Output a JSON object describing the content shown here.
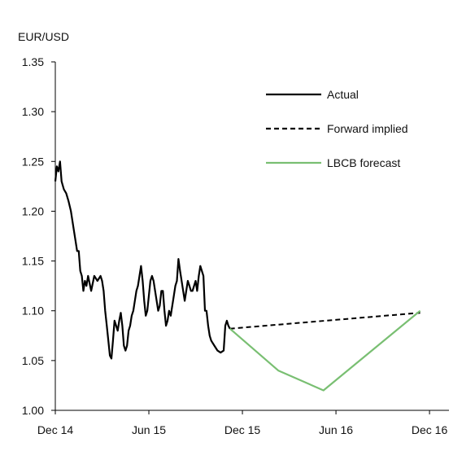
{
  "chart_data": {
    "type": "line",
    "title": "",
    "ylabel": "EUR/USD",
    "xlabel": "",
    "ylim": [
      1.0,
      1.35
    ],
    "yticks": [
      "1.00",
      "1.05",
      "1.10",
      "1.15",
      "1.20",
      "1.25",
      "1.30",
      "1.35"
    ],
    "xticks": [
      "Dec 14",
      "Jun 15",
      "Dec 15",
      "Jun 16",
      "Dec 16"
    ],
    "x_unit": "months from Dec 14",
    "legend_position": "top-right",
    "grid": false,
    "series": [
      {
        "name": "Actual",
        "style": "solid",
        "color": "#000000",
        "points": [
          [
            0.0,
            1.23
          ],
          [
            0.1,
            1.245
          ],
          [
            0.2,
            1.24
          ],
          [
            0.3,
            1.25
          ],
          [
            0.4,
            1.23
          ],
          [
            0.55,
            1.222
          ],
          [
            0.7,
            1.218
          ],
          [
            0.85,
            1.21
          ],
          [
            1.0,
            1.2
          ],
          [
            1.1,
            1.19
          ],
          [
            1.2,
            1.18
          ],
          [
            1.3,
            1.17
          ],
          [
            1.4,
            1.16
          ],
          [
            1.5,
            1.16
          ],
          [
            1.6,
            1.14
          ],
          [
            1.7,
            1.135
          ],
          [
            1.8,
            1.12
          ],
          [
            1.9,
            1.13
          ],
          [
            2.0,
            1.125
          ],
          [
            2.1,
            1.135
          ],
          [
            2.3,
            1.12
          ],
          [
            2.5,
            1.135
          ],
          [
            2.7,
            1.13
          ],
          [
            2.9,
            1.135
          ],
          [
            3.0,
            1.13
          ],
          [
            3.1,
            1.12
          ],
          [
            3.2,
            1.1
          ],
          [
            3.3,
            1.085
          ],
          [
            3.4,
            1.07
          ],
          [
            3.5,
            1.055
          ],
          [
            3.6,
            1.052
          ],
          [
            3.7,
            1.07
          ],
          [
            3.8,
            1.09
          ],
          [
            3.9,
            1.085
          ],
          [
            4.0,
            1.08
          ],
          [
            4.1,
            1.09
          ],
          [
            4.2,
            1.098
          ],
          [
            4.3,
            1.085
          ],
          [
            4.4,
            1.065
          ],
          [
            4.5,
            1.06
          ],
          [
            4.6,
            1.065
          ],
          [
            4.7,
            1.08
          ],
          [
            4.8,
            1.085
          ],
          [
            4.9,
            1.095
          ],
          [
            5.0,
            1.1
          ],
          [
            5.1,
            1.11
          ],
          [
            5.2,
            1.12
          ],
          [
            5.3,
            1.125
          ],
          [
            5.4,
            1.135
          ],
          [
            5.5,
            1.145
          ],
          [
            5.6,
            1.13
          ],
          [
            5.7,
            1.11
          ],
          [
            5.8,
            1.095
          ],
          [
            5.9,
            1.1
          ],
          [
            6.0,
            1.115
          ],
          [
            6.1,
            1.13
          ],
          [
            6.2,
            1.135
          ],
          [
            6.3,
            1.13
          ],
          [
            6.4,
            1.12
          ],
          [
            6.5,
            1.11
          ],
          [
            6.6,
            1.1
          ],
          [
            6.7,
            1.105
          ],
          [
            6.8,
            1.12
          ],
          [
            6.9,
            1.12
          ],
          [
            7.0,
            1.1
          ],
          [
            7.1,
            1.085
          ],
          [
            7.2,
            1.09
          ],
          [
            7.3,
            1.1
          ],
          [
            7.4,
            1.095
          ],
          [
            7.5,
            1.105
          ],
          [
            7.6,
            1.115
          ],
          [
            7.7,
            1.125
          ],
          [
            7.8,
            1.13
          ],
          [
            7.9,
            1.152
          ],
          [
            8.0,
            1.14
          ],
          [
            8.1,
            1.13
          ],
          [
            8.2,
            1.12
          ],
          [
            8.3,
            1.11
          ],
          [
            8.4,
            1.12
          ],
          [
            8.5,
            1.13
          ],
          [
            8.6,
            1.125
          ],
          [
            8.7,
            1.12
          ],
          [
            8.8,
            1.12
          ],
          [
            8.9,
            1.125
          ],
          [
            9.0,
            1.13
          ],
          [
            9.1,
            1.12
          ],
          [
            9.2,
            1.135
          ],
          [
            9.3,
            1.145
          ],
          [
            9.4,
            1.14
          ],
          [
            9.5,
            1.135
          ],
          [
            9.6,
            1.1
          ],
          [
            9.7,
            1.1
          ],
          [
            9.8,
            1.085
          ],
          [
            9.9,
            1.075
          ],
          [
            10.0,
            1.07
          ],
          [
            10.2,
            1.065
          ],
          [
            10.4,
            1.06
          ],
          [
            10.6,
            1.058
          ],
          [
            10.8,
            1.06
          ],
          [
            10.9,
            1.085
          ],
          [
            11.0,
            1.09
          ],
          [
            11.1,
            1.085
          ],
          [
            11.2,
            1.082
          ]
        ]
      },
      {
        "name": "Forward implied",
        "style": "dashed",
        "color": "#000000",
        "points": [
          [
            11.2,
            1.082
          ],
          [
            23.4,
            1.098
          ]
        ]
      },
      {
        "name": "LBCB forecast",
        "style": "solid",
        "color": "#79bf72",
        "points": [
          [
            11.2,
            1.082
          ],
          [
            14.3,
            1.04
          ],
          [
            17.2,
            1.02
          ],
          [
            23.4,
            1.1
          ]
        ]
      }
    ]
  }
}
